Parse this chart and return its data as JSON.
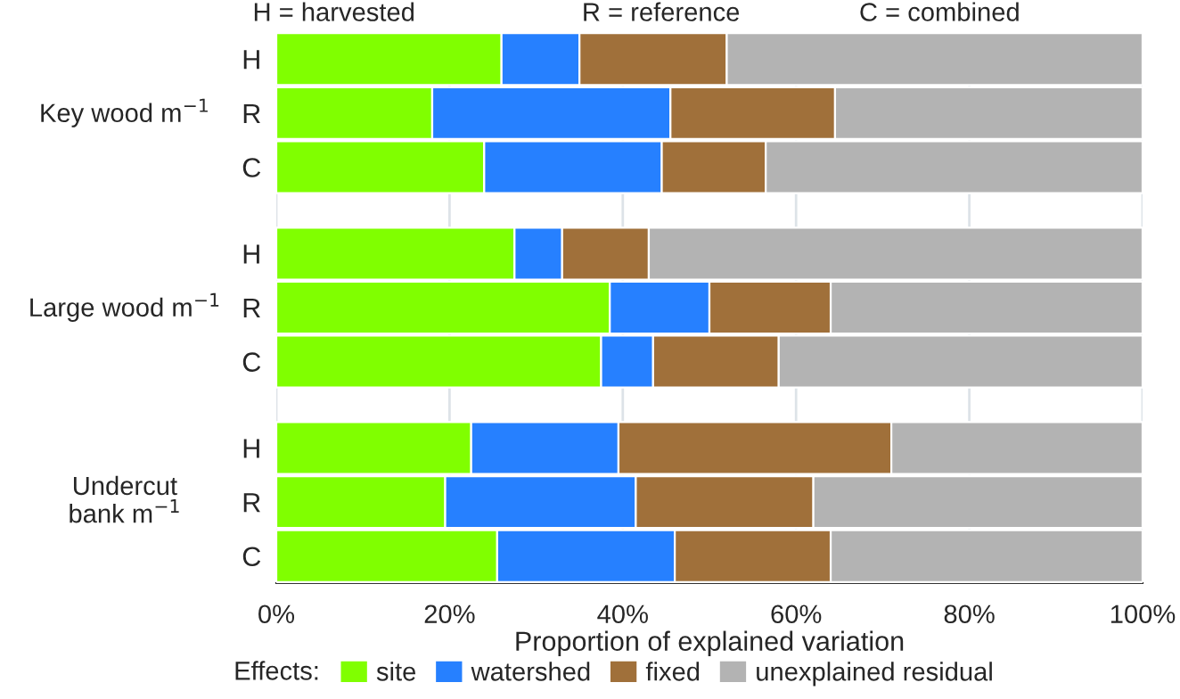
{
  "chart_data": {
    "type": "bar",
    "orientation": "horizontal",
    "stacked": true,
    "categories": [
      "H",
      "R",
      "C",
      "H",
      "R",
      "C",
      "H",
      "R",
      "C"
    ],
    "series": [
      {
        "name": "site",
        "color": "#80ff00",
        "values": [
          26,
          18,
          24,
          27.5,
          38.5,
          37.5,
          22.5,
          19.5,
          25.5
        ]
      },
      {
        "name": "watershed",
        "color": "#2680ff",
        "values": [
          9,
          27.5,
          20.5,
          5.5,
          11.5,
          6,
          17,
          22,
          20.5
        ]
      },
      {
        "name": "fixed",
        "color": "#a0703a",
        "values": [
          17,
          19,
          12,
          10,
          14,
          14.5,
          31.5,
          20.5,
          18
        ]
      },
      {
        "name": "unexplained residual",
        "color": "#b3b3b3",
        "values": [
          48,
          35.5,
          43.5,
          57,
          36,
          42,
          29,
          38,
          36
        ]
      }
    ],
    "xlim": [
      0,
      100
    ],
    "xticks": [
      {
        "value": 0,
        "label": "0%"
      },
      {
        "value": 20,
        "label": "20%"
      },
      {
        "value": 40,
        "label": "40%"
      },
      {
        "value": 60,
        "label": "60%"
      },
      {
        "value": 80,
        "label": "80%"
      },
      {
        "value": 100,
        "label": "100%"
      }
    ],
    "xlabel": "Proportion of explained variation",
    "legend_title": "Effects:",
    "legend": "bottom",
    "grid": "x",
    "annotations": [
      "H = harvested",
      "R = reference",
      "C = combined",
      "Key wood m$^{−1}$",
      "Large wood m$^{−1}$",
      "Undercut\nbank m$^{−1}$"
    ]
  }
}
